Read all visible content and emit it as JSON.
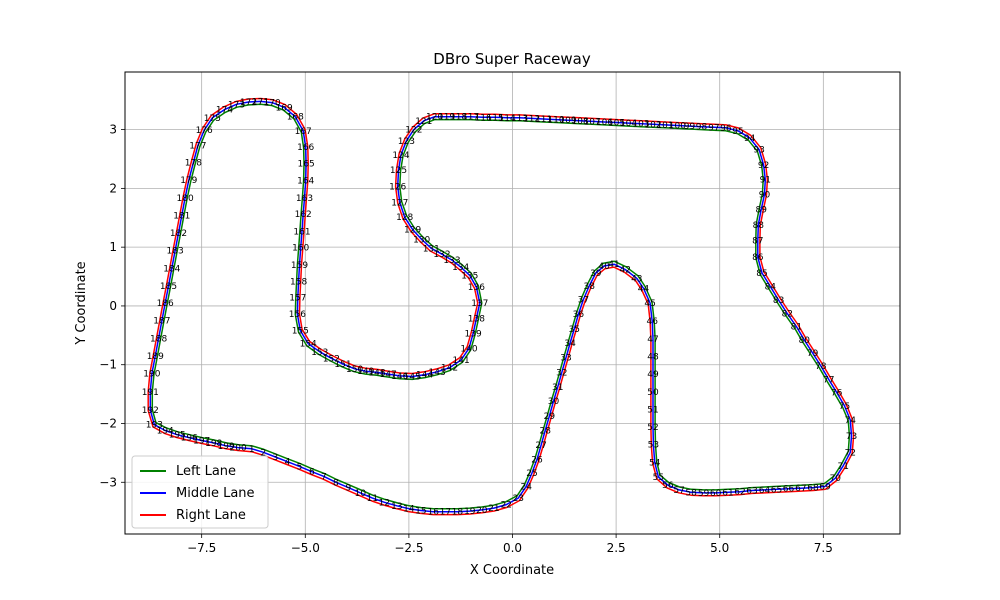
{
  "chart_data": {
    "type": "line",
    "title": "DBro Super Raceway",
    "xlabel": "X Coordinate",
    "ylabel": "Y Coordinate",
    "xlim": [
      -9.35,
      9.35
    ],
    "ylim": [
      -3.88,
      3.98
    ],
    "xticks": [
      -7.5,
      -5.0,
      -2.5,
      0.0,
      2.5,
      5.0,
      7.5
    ],
    "xtick_labels": [
      "−7.5",
      "−5.0",
      "−2.5",
      "0.0",
      "2.5",
      "5.0",
      "7.5"
    ],
    "yticks": [
      -3,
      -2,
      -1,
      0,
      1,
      2,
      3
    ],
    "ytick_labels": [
      "−3",
      "−2",
      "−1",
      "0",
      "1",
      "2",
      "3"
    ],
    "grid": true,
    "legend": {
      "position": "lower-left"
    },
    "colors": {
      "left": "#008000",
      "middle": "#0000ff",
      "right": "#ff0000"
    },
    "series": [
      {
        "name": "Left Lane",
        "color": "#008000",
        "offset": 0.05
      },
      {
        "name": "Middle Lane",
        "color": "#0000ff",
        "offset": 0.0
      },
      {
        "name": "Right Lane",
        "color": "#ff0000",
        "offset": -0.05
      }
    ],
    "waypoints": [
      [
        -6.29,
        -2.43
      ],
      [
        -6.01,
        -2.49
      ],
      [
        -5.72,
        -2.57
      ],
      [
        -5.43,
        -2.65
      ],
      [
        -5.14,
        -2.73
      ],
      [
        -4.84,
        -2.82
      ],
      [
        -4.55,
        -2.9
      ],
      [
        -4.26,
        -3.0
      ],
      [
        -3.96,
        -3.09
      ],
      [
        -3.67,
        -3.18
      ],
      [
        -3.38,
        -3.27
      ],
      [
        -3.09,
        -3.34
      ],
      [
        -2.79,
        -3.4
      ],
      [
        -2.5,
        -3.45
      ],
      [
        -2.21,
        -3.48
      ],
      [
        -1.91,
        -3.5
      ],
      [
        -1.62,
        -3.5
      ],
      [
        -1.33,
        -3.5
      ],
      [
        -1.03,
        -3.49
      ],
      [
        -0.74,
        -3.47
      ],
      [
        -0.45,
        -3.44
      ],
      [
        -0.15,
        -3.38
      ],
      [
        0.14,
        -3.27
      ],
      [
        0.33,
        -3.07
      ],
      [
        0.47,
        -2.84
      ],
      [
        0.59,
        -2.61
      ],
      [
        0.69,
        -2.37
      ],
      [
        0.79,
        -2.12
      ],
      [
        0.89,
        -1.87
      ],
      [
        0.99,
        -1.62
      ],
      [
        1.09,
        -1.38
      ],
      [
        1.19,
        -1.13
      ],
      [
        1.29,
        -0.88
      ],
      [
        1.39,
        -0.63
      ],
      [
        1.49,
        -0.39
      ],
      [
        1.59,
        -0.14
      ],
      [
        1.71,
        0.11
      ],
      [
        1.85,
        0.34
      ],
      [
        2.01,
        0.56
      ],
      [
        2.21,
        0.68
      ],
      [
        2.45,
        0.71
      ],
      [
        2.72,
        0.62
      ],
      [
        3.0,
        0.47
      ],
      [
        3.16,
        0.3
      ],
      [
        3.32,
        0.05
      ],
      [
        3.37,
        -0.26
      ],
      [
        3.39,
        -0.56
      ],
      [
        3.39,
        -0.86
      ],
      [
        3.39,
        -1.16
      ],
      [
        3.39,
        -1.46
      ],
      [
        3.39,
        -1.76
      ],
      [
        3.39,
        -2.06
      ],
      [
        3.4,
        -2.36
      ],
      [
        3.43,
        -2.66
      ],
      [
        3.52,
        -2.91
      ],
      [
        3.75,
        -3.05
      ],
      [
        4.02,
        -3.13
      ],
      [
        4.31,
        -3.17
      ],
      [
        4.61,
        -3.18
      ],
      [
        4.9,
        -3.18
      ],
      [
        5.2,
        -3.17
      ],
      [
        5.49,
        -3.16
      ],
      [
        5.78,
        -3.14
      ],
      [
        6.08,
        -3.13
      ],
      [
        6.37,
        -3.12
      ],
      [
        6.66,
        -3.11
      ],
      [
        6.96,
        -3.1
      ],
      [
        7.25,
        -3.09
      ],
      [
        7.54,
        -3.07
      ],
      [
        7.79,
        -2.93
      ],
      [
        7.98,
        -2.72
      ],
      [
        8.15,
        -2.49
      ],
      [
        8.18,
        -2.21
      ],
      [
        8.15,
        -1.94
      ],
      [
        8.01,
        -1.7
      ],
      [
        7.82,
        -1.47
      ],
      [
        7.63,
        -1.25
      ],
      [
        7.44,
        -1.02
      ],
      [
        7.24,
        -0.8
      ],
      [
        7.04,
        -0.58
      ],
      [
        6.85,
        -0.35
      ],
      [
        6.63,
        -0.13
      ],
      [
        6.42,
        0.1
      ],
      [
        6.22,
        0.33
      ],
      [
        6.02,
        0.56
      ],
      [
        5.92,
        0.83
      ],
      [
        5.92,
        1.11
      ],
      [
        5.93,
        1.38
      ],
      [
        6.0,
        1.64
      ],
      [
        6.08,
        1.9
      ],
      [
        6.1,
        2.15
      ],
      [
        6.06,
        2.4
      ],
      [
        5.95,
        2.66
      ],
      [
        5.72,
        2.86
      ],
      [
        5.44,
        2.98
      ],
      [
        5.15,
        3.03
      ],
      [
        4.86,
        3.04
      ],
      [
        4.56,
        3.05
      ],
      [
        4.27,
        3.06
      ],
      [
        3.98,
        3.07
      ],
      [
        3.68,
        3.08
      ],
      [
        3.39,
        3.09
      ],
      [
        3.1,
        3.1
      ],
      [
        2.8,
        3.11
      ],
      [
        2.51,
        3.12
      ],
      [
        2.22,
        3.13
      ],
      [
        1.92,
        3.14
      ],
      [
        1.63,
        3.15
      ],
      [
        1.34,
        3.16
      ],
      [
        1.05,
        3.17
      ],
      [
        0.75,
        3.18
      ],
      [
        0.46,
        3.19
      ],
      [
        0.17,
        3.2
      ],
      [
        -0.13,
        3.2
      ],
      [
        -0.42,
        3.21
      ],
      [
        -0.71,
        3.21
      ],
      [
        -1.01,
        3.22
      ],
      [
        -1.3,
        3.22
      ],
      [
        -1.59,
        3.22
      ],
      [
        -1.88,
        3.22
      ],
      [
        -2.14,
        3.15
      ],
      [
        -2.38,
        3.0
      ],
      [
        -2.56,
        2.81
      ],
      [
        -2.69,
        2.57
      ],
      [
        -2.75,
        2.31
      ],
      [
        -2.77,
        2.03
      ],
      [
        -2.72,
        1.76
      ],
      [
        -2.6,
        1.51
      ],
      [
        -2.41,
        1.3
      ],
      [
        -2.19,
        1.13
      ],
      [
        -1.96,
        0.98
      ],
      [
        -1.7,
        0.88
      ],
      [
        -1.46,
        0.78
      ],
      [
        -1.25,
        0.66
      ],
      [
        -1.03,
        0.52
      ],
      [
        -0.87,
        0.32
      ],
      [
        -0.79,
        0.05
      ],
      [
        -0.87,
        -0.21
      ],
      [
        -0.95,
        -0.47
      ],
      [
        -1.05,
        -0.72
      ],
      [
        -1.24,
        -0.92
      ],
      [
        -1.52,
        -1.05
      ],
      [
        -1.82,
        -1.12
      ],
      [
        -2.12,
        -1.17
      ],
      [
        -2.42,
        -1.2
      ],
      [
        -2.72,
        -1.19
      ],
      [
        -3.0,
        -1.16
      ],
      [
        -3.27,
        -1.13
      ],
      [
        -3.54,
        -1.11
      ],
      [
        -3.81,
        -1.07
      ],
      [
        -4.09,
        -0.99
      ],
      [
        -4.37,
        -0.89
      ],
      [
        -4.65,
        -0.78
      ],
      [
        -4.93,
        -0.64
      ],
      [
        -5.12,
        -0.42
      ],
      [
        -5.19,
        -0.14
      ],
      [
        -5.18,
        0.14
      ],
      [
        -5.16,
        0.42
      ],
      [
        -5.14,
        0.7
      ],
      [
        -5.11,
        0.99
      ],
      [
        -5.08,
        1.27
      ],
      [
        -5.05,
        1.56
      ],
      [
        -5.02,
        1.84
      ],
      [
        -4.99,
        2.13
      ],
      [
        -4.98,
        2.42
      ],
      [
        -4.99,
        2.7
      ],
      [
        -5.05,
        2.98
      ],
      [
        -5.24,
        3.22
      ],
      [
        -5.51,
        3.38
      ],
      [
        -5.8,
        3.46
      ],
      [
        -6.08,
        3.48
      ],
      [
        -6.37,
        3.47
      ],
      [
        -6.66,
        3.43
      ],
      [
        -6.95,
        3.34
      ],
      [
        -7.24,
        3.2
      ],
      [
        -7.44,
        2.99
      ],
      [
        -7.59,
        2.73
      ],
      [
        -7.7,
        2.44
      ],
      [
        -7.81,
        2.14
      ],
      [
        -7.9,
        1.84
      ],
      [
        -7.98,
        1.54
      ],
      [
        -8.06,
        1.24
      ],
      [
        -8.14,
        0.94
      ],
      [
        -8.22,
        0.64
      ],
      [
        -8.3,
        0.34
      ],
      [
        -8.38,
        0.05
      ],
      [
        -8.46,
        -0.25
      ],
      [
        -8.54,
        -0.55
      ],
      [
        -8.62,
        -0.85
      ],
      [
        -8.7,
        -1.15
      ],
      [
        -8.74,
        -1.46
      ],
      [
        -8.74,
        -1.77
      ],
      [
        -8.64,
        -2.02
      ],
      [
        -8.38,
        -2.12
      ],
      [
        -8.09,
        -2.19
      ],
      [
        -7.8,
        -2.24
      ],
      [
        -7.5,
        -2.29
      ],
      [
        -7.21,
        -2.33
      ],
      [
        -6.91,
        -2.38
      ],
      [
        -6.62,
        -2.41
      ]
    ]
  }
}
